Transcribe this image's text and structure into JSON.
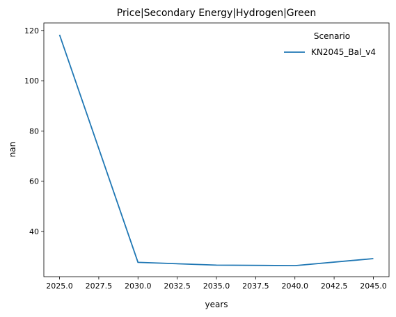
{
  "chart_data": {
    "type": "line",
    "title": "Price|Secondary Energy|Hydrogen|Green",
    "xlabel": "years",
    "ylabel": "nan",
    "xlim": [
      2025.0,
      2045.0
    ],
    "ylim": [
      22.0,
      123.0
    ],
    "x_ticks": [
      "2025.0",
      "2027.5",
      "2030.0",
      "2032.5",
      "2035.0",
      "2037.5",
      "2040.0",
      "2042.5",
      "2045.0"
    ],
    "y_ticks": [
      "40",
      "60",
      "80",
      "100",
      "120"
    ],
    "grid": false,
    "legend": {
      "title": "Scenario",
      "placement": "top-right"
    },
    "series": [
      {
        "name": "KN2045_Bal_v4",
        "color": "#1f77b4",
        "x": [
          2025,
          2030,
          2035,
          2040,
          2045
        ],
        "y": [
          118.3,
          27.7,
          26.6,
          26.4,
          29.2
        ]
      }
    ]
  }
}
